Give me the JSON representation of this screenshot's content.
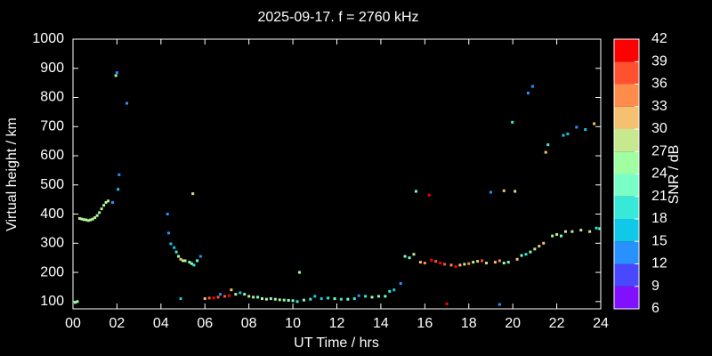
{
  "chart_data": {
    "type": "scatter",
    "title": "2025-09-17. f = 2760 kHz",
    "x_label": "UT Time / hrs",
    "y_label": "Virtual height / km",
    "xlim": [
      0,
      24
    ],
    "ylim": [
      75,
      1000
    ],
    "xticks": [
      {
        "value": 0,
        "label": "00"
      },
      {
        "value": 2,
        "label": "02"
      },
      {
        "value": 4,
        "label": "04"
      },
      {
        "value": 6,
        "label": "06"
      },
      {
        "value": 8,
        "label": "08"
      },
      10,
      12,
      14,
      16,
      18,
      20,
      22,
      24
    ],
    "yticks": [
      100,
      200,
      300,
      400,
      500,
      600,
      700,
      800,
      900,
      1000
    ],
    "colorbar": {
      "label": "SNR / dB",
      "lim": [
        6,
        42
      ],
      "ticks": [
        6,
        9,
        12,
        15,
        18,
        21,
        24,
        27,
        30,
        33,
        36,
        39,
        42
      ],
      "colors": [
        "#8010ff",
        "#4848ff",
        "#2890ff",
        "#10c8e8",
        "#38e8d8",
        "#78ffc8",
        "#a0ffa0",
        "#c8e890",
        "#f5c070",
        "#ff8c4a",
        "#ff5030",
        "#ff0000"
      ]
    },
    "points": {
      "x": [
        0.1,
        0.2,
        0.3,
        0.4,
        0.5,
        0.6,
        0.7,
        0.8,
        0.9,
        1.0,
        1.1,
        1.2,
        1.3,
        1.4,
        1.5,
        1.6,
        1.8,
        1.95,
        2.0,
        2.05,
        2.1,
        2.45,
        4.3,
        4.35,
        4.45,
        4.6,
        4.7,
        4.8,
        4.9,
        5.0,
        5.1,
        5.3,
        5.4,
        5.5,
        5.65,
        5.8,
        4.9,
        5.45,
        6.0,
        6.2,
        6.4,
        6.6,
        6.7,
        6.9,
        7.1,
        7.2,
        7.4,
        7.6,
        7.8,
        8.0,
        8.2,
        8.4,
        8.6,
        8.8,
        9.0,
        9.2,
        9.4,
        9.6,
        9.8,
        10.0,
        10.2,
        10.3,
        10.5,
        10.8,
        11.0,
        11.3,
        11.6,
        11.9,
        12.2,
        12.5,
        12.8,
        13.0,
        13.3,
        13.6,
        13.9,
        14.2,
        14.4,
        14.6,
        14.9,
        15.1,
        15.3,
        15.5,
        15.6,
        15.8,
        16.0,
        16.2,
        16.3,
        16.5,
        16.7,
        16.9,
        17.0,
        17.2,
        17.4,
        17.6,
        17.8,
        18.0,
        18.2,
        18.4,
        18.6,
        18.8,
        19.0,
        19.2,
        19.4,
        19.6,
        19.6,
        19.4,
        19.8,
        19.98,
        20.1,
        20.2,
        20.4,
        20.6,
        20.8,
        20.7,
        20.9,
        21.0,
        21.2,
        21.4,
        21.5,
        21.6,
        21.8,
        22.0,
        22.2,
        22.3,
        22.5,
        22.4,
        22.7,
        22.9,
        23.1,
        23.3,
        23.5,
        23.7,
        23.8,
        23.95
      ],
      "y": [
        97,
        100,
        385,
        383,
        381,
        380,
        378,
        380,
        383,
        388,
        395,
        405,
        418,
        430,
        440,
        445,
        440,
        875,
        885,
        485,
        535,
        780,
        400,
        335,
        298,
        285,
        270,
        255,
        245,
        240,
        240,
        235,
        230,
        225,
        240,
        255,
        110,
        470,
        110,
        112,
        112,
        115,
        125,
        118,
        120,
        140,
        125,
        130,
        125,
        118,
        115,
        115,
        110,
        108,
        110,
        108,
        106,
        105,
        104,
        103,
        100,
        200,
        105,
        108,
        118,
        110,
        112,
        110,
        108,
        108,
        110,
        120,
        118,
        115,
        118,
        118,
        135,
        140,
        162,
        255,
        250,
        262,
        478,
        235,
        232,
        465,
        242,
        238,
        232,
        228,
        92,
        225,
        220,
        225,
        228,
        230,
        235,
        238,
        240,
        232,
        475,
        235,
        240,
        232,
        480,
        90,
        235,
        715,
        478,
        245,
        258,
        262,
        270,
        815,
        838,
        280,
        290,
        300,
        612,
        638,
        325,
        330,
        325,
        670,
        675,
        340,
        340,
        698,
        345,
        690,
        340,
        710,
        352,
        350
      ],
      "snr": [
        24,
        24,
        27,
        27,
        25,
        24,
        27,
        25,
        24,
        27,
        25,
        24,
        27,
        25,
        24,
        27,
        12,
        24,
        12,
        15,
        12,
        12,
        12,
        12,
        15,
        15,
        18,
        24,
        30,
        27,
        24,
        24,
        21,
        18,
        21,
        12,
        15,
        27,
        30,
        36,
        39,
        36,
        12,
        36,
        39,
        30,
        27,
        15,
        21,
        27,
        24,
        21,
        24,
        27,
        21,
        24,
        27,
        21,
        24,
        21,
        18,
        24,
        21,
        18,
        15,
        15,
        18,
        21,
        18,
        21,
        18,
        12,
        18,
        24,
        21,
        21,
        18,
        15,
        12,
        21,
        21,
        27,
        21,
        30,
        33,
        39,
        39,
        36,
        39,
        36,
        39,
        33,
        39,
        30,
        27,
        33,
        24,
        30,
        36,
        27,
        12,
        30,
        33,
        24,
        30,
        12,
        21,
        18,
        27,
        30,
        21,
        18,
        21,
        12,
        12,
        27,
        30,
        30,
        30,
        18,
        24,
        27,
        21,
        15,
        15,
        27,
        27,
        12,
        27,
        15,
        27,
        30,
        18,
        21
      ]
    }
  }
}
